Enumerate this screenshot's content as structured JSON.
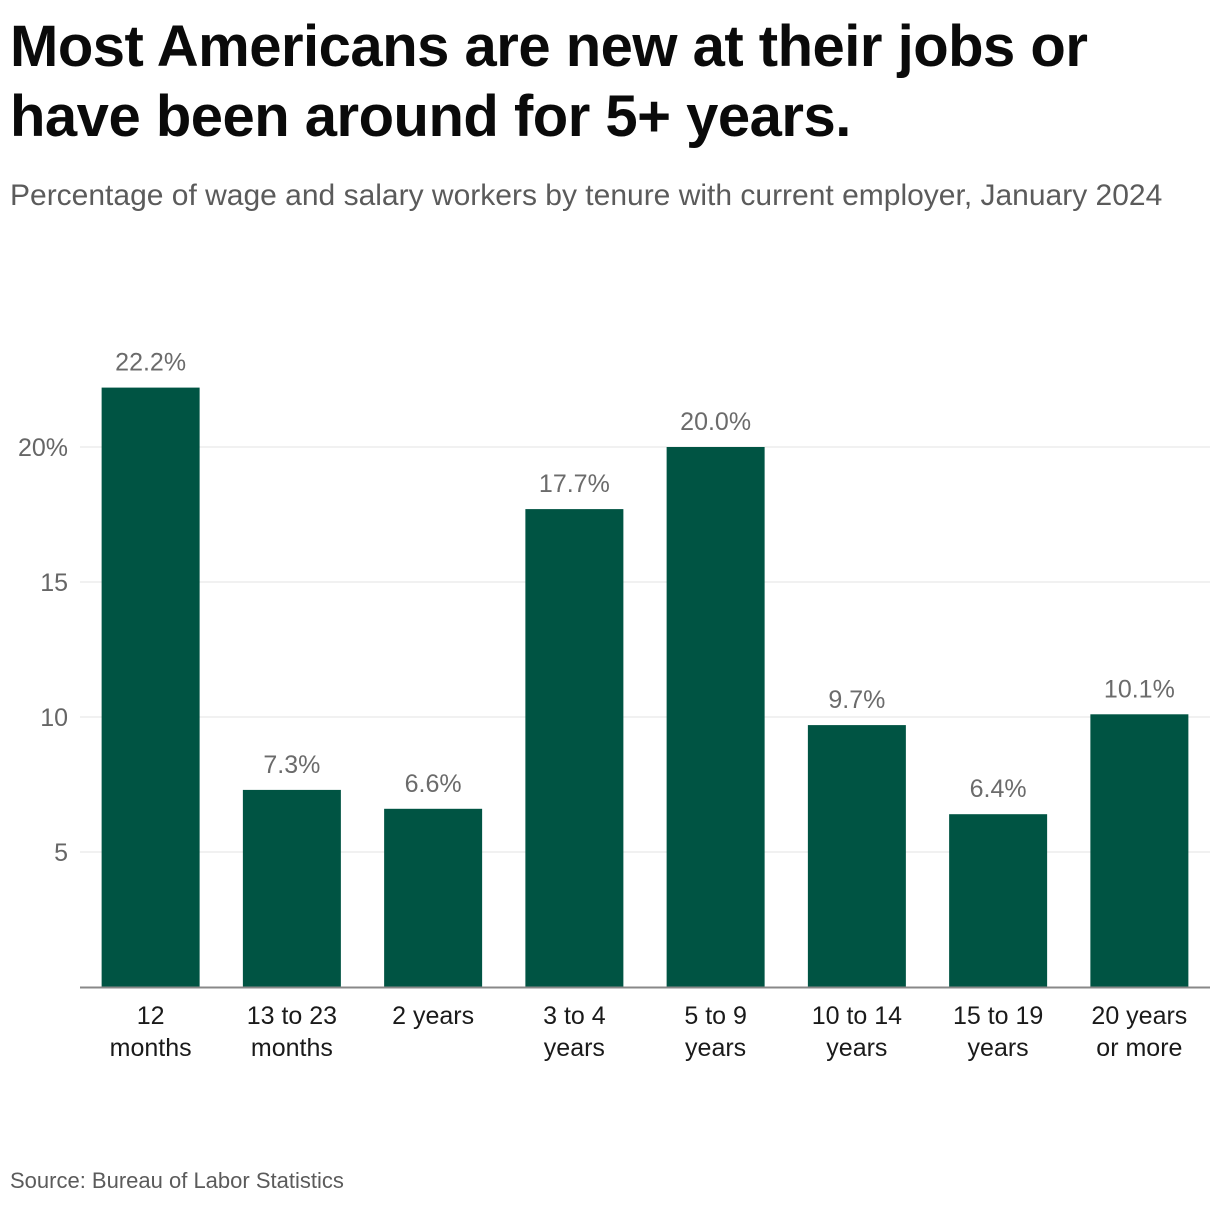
{
  "header": {
    "title": "Most Americans are new at their jobs or have been around for 5+ years.",
    "subtitle": "Percentage of wage and salary workers by tenure with current employer, January 2024"
  },
  "footer": {
    "source": "Source: Bureau of Labor Statistics"
  },
  "colors": {
    "bar": "#005443",
    "grid": "#e3e3e3",
    "axis": "#888888",
    "tick_text": "#666666",
    "label_text": "#6b6b6b",
    "category_text": "#1a1a1a"
  },
  "chart_data": {
    "type": "bar",
    "title": "Most Americans are new at their jobs or have been around for 5+ years.",
    "subtitle": "Percentage of wage and salary workers by tenure with current employer, January 2024",
    "categories": [
      [
        "12",
        "months"
      ],
      [
        "13 to 23",
        "months"
      ],
      [
        "2 years"
      ],
      [
        "3 to 4",
        "years"
      ],
      [
        "5 to 9",
        "years"
      ],
      [
        "10 to 14",
        "years"
      ],
      [
        "15 to 19",
        "years"
      ],
      [
        "20 years",
        "or more"
      ]
    ],
    "values": [
      22.2,
      7.3,
      6.6,
      17.7,
      20.0,
      9.7,
      6.4,
      10.1
    ],
    "data_labels": [
      "22.2%",
      "7.3%",
      "6.6%",
      "17.7%",
      "20.0%",
      "9.7%",
      "6.4%",
      "10.1%"
    ],
    "y_ticks": [
      5,
      10,
      15,
      20
    ],
    "y_tick_labels": [
      "5",
      "10",
      "15",
      "20%"
    ],
    "ylim": [
      0,
      22.2
    ],
    "xlabel": "",
    "ylabel": "",
    "grid": true,
    "legend": "none"
  }
}
